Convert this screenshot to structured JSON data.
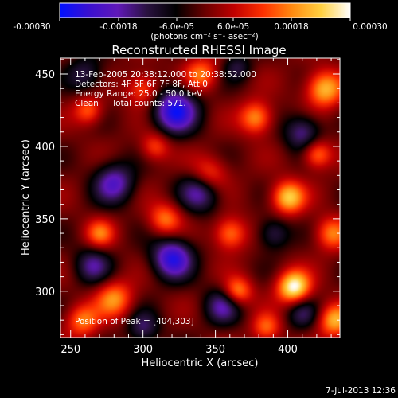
{
  "chart_data": {
    "type": "heatmap",
    "title": "Reconstructed RHESSI Image",
    "xlabel": "Heliocentric X (arcsec)",
    "ylabel": "Heliocentric Y (arcsec)",
    "xlim": [
      243,
      436
    ],
    "ylim": [
      268,
      461
    ],
    "x_ticks": [
      250,
      300,
      350,
      400
    ],
    "y_ticks": [
      300,
      350,
      400,
      450
    ],
    "x_minor_step": 10,
    "y_minor_step": 10,
    "colorbar": {
      "range": [
        -0.0003,
        0.0003
      ],
      "tick_labels": [
        "-0.00030",
        "-0.00018",
        "-6.0e-05",
        "6.0e-05",
        "0.00018",
        "0.00030"
      ],
      "unit_label": "(photons cm⁻² s⁻¹ asec⁻²)",
      "colors": [
        "#0010ff",
        "#3a10d0",
        "#6018b8",
        "#2a1240",
        "#000000",
        "#6a0000",
        "#c00000",
        "#ff3000",
        "#ff8a10",
        "#ffd040",
        "#ffffff"
      ]
    },
    "annotations": [
      "13-Feb-2005 20:38:12.000 to 20:38:52.000",
      "Detectors: 4F 5F 6F 7F 8F, Att 0",
      "Energy Range: 25.0 - 50.0 keV",
      "Clean     Total counts: 571."
    ],
    "peak_label": "Position of Peak = [404,303]",
    "peak": [
      404,
      303
    ],
    "date_stamp": "7-Jul-2013 12:36",
    "sources": [
      {
        "x": 404,
        "y": 303,
        "amp": 1.0,
        "sigma": 8
      },
      {
        "x": 365,
        "y": 300,
        "amp": 0.65,
        "sigma": 7
      },
      {
        "x": 280,
        "y": 295,
        "amp": 0.6,
        "sigma": 9
      },
      {
        "x": 258,
        "y": 280,
        "amp": 0.55,
        "sigma": 8
      },
      {
        "x": 315,
        "y": 350,
        "amp": 0.55,
        "sigma": 8
      },
      {
        "x": 270,
        "y": 340,
        "amp": 0.5,
        "sigma": 7
      },
      {
        "x": 345,
        "y": 380,
        "amp": 0.6,
        "sigma": 9
      },
      {
        "x": 378,
        "y": 420,
        "amp": 0.65,
        "sigma": 8
      },
      {
        "x": 425,
        "y": 440,
        "amp": 0.75,
        "sigma": 9
      },
      {
        "x": 400,
        "y": 365,
        "amp": 0.8,
        "sigma": 8
      },
      {
        "x": 420,
        "y": 395,
        "amp": 0.6,
        "sigma": 7
      },
      {
        "x": 340,
        "y": 450,
        "amp": 0.55,
        "sigma": 8
      },
      {
        "x": 300,
        "y": 440,
        "amp": 0.5,
        "sigma": 8
      },
      {
        "x": 262,
        "y": 425,
        "amp": 0.5,
        "sigma": 7
      },
      {
        "x": 360,
        "y": 340,
        "amp": 0.6,
        "sigma": 8
      },
      {
        "x": 432,
        "y": 280,
        "amp": 0.7,
        "sigma": 8
      },
      {
        "x": 385,
        "y": 275,
        "amp": 0.5,
        "sigma": 7
      },
      {
        "x": 308,
        "y": 400,
        "amp": 0.45,
        "sigma": 7
      },
      {
        "x": 430,
        "y": 340,
        "amp": 0.55,
        "sigma": 8
      },
      {
        "x": 322,
        "y": 425,
        "amp": -0.9,
        "sigma": 11
      },
      {
        "x": 340,
        "y": 370,
        "amp": -0.7,
        "sigma": 10
      },
      {
        "x": 320,
        "y": 323,
        "amp": -0.85,
        "sigma": 10
      },
      {
        "x": 280,
        "y": 375,
        "amp": -0.65,
        "sigma": 10
      },
      {
        "x": 355,
        "y": 290,
        "amp": -0.55,
        "sigma": 9
      },
      {
        "x": 265,
        "y": 318,
        "amp": -0.5,
        "sigma": 9
      },
      {
        "x": 410,
        "y": 410,
        "amp": -0.55,
        "sigma": 9
      },
      {
        "x": 410,
        "y": 285,
        "amp": -0.4,
        "sigma": 8
      },
      {
        "x": 390,
        "y": 340,
        "amp": -0.45,
        "sigma": 8
      },
      {
        "x": 260,
        "y": 450,
        "amp": -0.4,
        "sigma": 9
      },
      {
        "x": 365,
        "y": 455,
        "amp": -0.35,
        "sigma": 7
      },
      {
        "x": 300,
        "y": 275,
        "amp": -0.45,
        "sigma": 8
      }
    ]
  }
}
